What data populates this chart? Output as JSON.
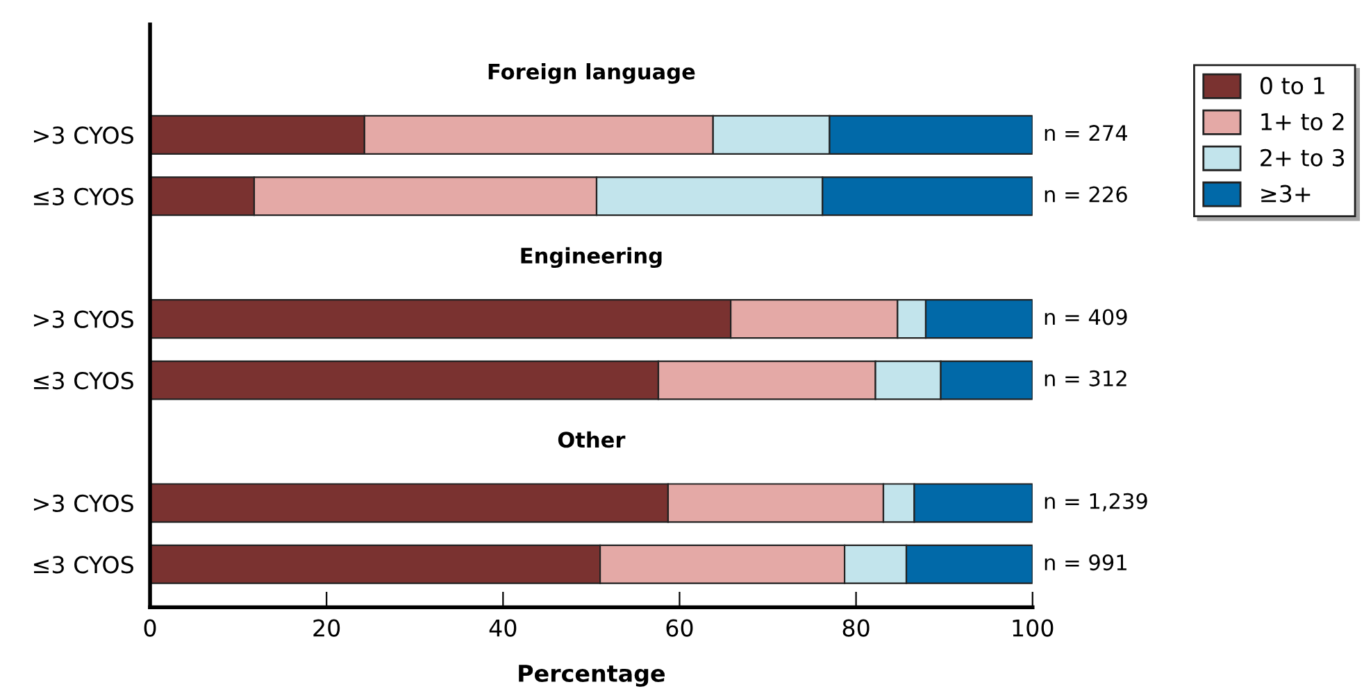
{
  "chart_data": {
    "type": "bar",
    "orientation": "horizontal",
    "stacked": true,
    "categories": [
      null,
      ">3 CYOS",
      "≤3 CYOS",
      null,
      ">3 CYOS",
      "≤3 CYOS",
      null,
      ">3 CYOS",
      "≤3 CYOS"
    ],
    "series": [
      {
        "name": "0 to 1",
        "color": "#7a3230",
        "values": [
          null,
          24.3,
          11.8,
          null,
          65.8,
          57.6,
          null,
          58.7,
          51.0
        ]
      },
      {
        "name": "1+ to 2",
        "color": "#e4a9a6",
        "values": [
          null,
          39.5,
          38.8,
          null,
          18.9,
          24.6,
          null,
          24.4,
          27.7
        ]
      },
      {
        "name": "2+ to 3",
        "color": "#c2e4ec",
        "values": [
          null,
          13.2,
          25.6,
          null,
          3.2,
          7.4,
          null,
          3.5,
          7.0
        ]
      },
      {
        "name": "≥3+",
        "color": "#0169a8",
        "values": [
          null,
          23.0,
          23.8,
          null,
          12.1,
          10.4,
          null,
          13.4,
          14.3
        ]
      }
    ],
    "xlim": [
      0,
      100
    ],
    "xticks": [
      0,
      20,
      40,
      60,
      80,
      100
    ],
    "xlabel": "Percentage",
    "legend": "top right",
    "grid": false,
    "annotations": [
      "Foreign language",
      "Engineering",
      "Other",
      "n = 274",
      "n = 226",
      "n = 409",
      "n = 312",
      "n = 1,239",
      "n = 991"
    ]
  }
}
